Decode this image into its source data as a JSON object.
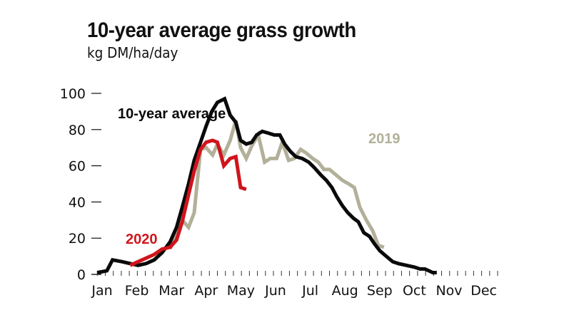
{
  "chart_data": {
    "type": "line",
    "title": "10-year average grass growth",
    "subtitle": "kg DM/ha/day",
    "xlabel": "",
    "ylabel": "kg DM/ha/day",
    "ylim": [
      0,
      100
    ],
    "yticks": [
      0,
      20,
      40,
      60,
      80,
      100
    ],
    "grid": false,
    "x_unit": "week of year",
    "xlim": [
      0,
      51.5
    ],
    "month_labels": [
      "Jan",
      "Feb",
      "Mar",
      "Apr",
      "May",
      "Jun",
      "Jul",
      "Aug",
      "Sep",
      "Oct",
      "Nov",
      "Dec"
    ],
    "colors": {
      "ten_year": "#0a0a0a",
      "y2020": "#d0141c",
      "y2019": "#b3b09a"
    },
    "series": [
      {
        "name": "10-year average",
        "label": "10-year average",
        "color_key": "ten_year",
        "points": [
          [
            -0.6,
            1
          ],
          [
            0.6,
            2
          ],
          [
            1.3,
            8
          ],
          [
            2.5,
            7
          ],
          [
            3.5,
            6
          ],
          [
            4.5,
            5
          ],
          [
            5.5,
            6
          ],
          [
            6.5,
            8
          ],
          [
            7.5,
            12
          ],
          [
            8.5,
            18
          ],
          [
            9.3,
            26
          ],
          [
            10.0,
            37
          ],
          [
            10.8,
            50
          ],
          [
            11.5,
            63
          ],
          [
            12.3,
            73
          ],
          [
            13.0,
            82
          ],
          [
            13.7,
            90
          ],
          [
            14.4,
            95
          ],
          [
            15.3,
            97
          ],
          [
            16.0,
            88
          ],
          [
            16.7,
            84
          ],
          [
            17.3,
            74
          ],
          [
            18.0,
            72
          ],
          [
            18.7,
            73
          ],
          [
            19.3,
            77
          ],
          [
            20.0,
            79
          ],
          [
            20.8,
            78
          ],
          [
            21.5,
            77
          ],
          [
            22.2,
            77
          ],
          [
            22.8,
            72
          ],
          [
            23.5,
            68
          ],
          [
            24.2,
            65
          ],
          [
            25.0,
            64
          ],
          [
            25.8,
            62
          ],
          [
            26.5,
            59
          ],
          [
            27.3,
            55
          ],
          [
            28.0,
            52
          ],
          [
            28.7,
            48
          ],
          [
            29.3,
            43
          ],
          [
            30.0,
            38
          ],
          [
            30.7,
            34
          ],
          [
            31.4,
            31
          ],
          [
            32.0,
            29
          ],
          [
            32.7,
            23
          ],
          [
            33.4,
            21
          ],
          [
            34.0,
            17
          ],
          [
            34.7,
            13
          ],
          [
            35.5,
            10
          ],
          [
            36.3,
            7
          ],
          [
            37.0,
            6
          ],
          [
            38.0,
            5
          ],
          [
            39.0,
            4
          ],
          [
            39.7,
            3
          ],
          [
            40.3,
            3
          ],
          [
            40.8,
            2
          ],
          [
            41.3,
            1
          ],
          [
            41.8,
            1
          ]
        ]
      },
      {
        "name": "2020",
        "label": "2020",
        "color_key": "y2020",
        "points": [
          [
            3.5,
            5
          ],
          [
            4.5,
            7
          ],
          [
            5.5,
            9
          ],
          [
            6.5,
            11
          ],
          [
            7.5,
            14
          ],
          [
            8.5,
            15
          ],
          [
            9.3,
            19
          ],
          [
            10.0,
            29
          ],
          [
            10.8,
            44
          ],
          [
            11.5,
            57
          ],
          [
            12.3,
            69
          ],
          [
            13.0,
            73
          ],
          [
            13.8,
            74
          ],
          [
            14.4,
            73
          ],
          [
            15.2,
            60
          ],
          [
            16.0,
            64
          ],
          [
            16.7,
            65
          ],
          [
            17.3,
            48
          ],
          [
            18.0,
            47
          ]
        ]
      },
      {
        "name": "2019",
        "label": "2019",
        "color_key": "y2019",
        "points": [
          [
            8.5,
            14
          ],
          [
            9.3,
            25
          ],
          [
            10.0,
            30
          ],
          [
            10.8,
            26
          ],
          [
            11.5,
            34
          ],
          [
            12.3,
            69
          ],
          [
            13.0,
            70
          ],
          [
            13.8,
            66
          ],
          [
            14.4,
            72
          ],
          [
            15.2,
            66
          ],
          [
            16.0,
            74
          ],
          [
            16.7,
            85
          ],
          [
            17.3,
            70
          ],
          [
            18.0,
            64
          ],
          [
            18.7,
            71
          ],
          [
            19.5,
            77
          ],
          [
            20.3,
            62
          ],
          [
            21.0,
            64
          ],
          [
            21.8,
            64
          ],
          [
            22.5,
            73
          ],
          [
            23.3,
            63
          ],
          [
            24.0,
            64
          ],
          [
            24.8,
            69
          ],
          [
            25.5,
            67
          ],
          [
            26.3,
            64
          ],
          [
            27.0,
            62
          ],
          [
            27.7,
            58
          ],
          [
            28.4,
            58
          ],
          [
            29.2,
            55
          ],
          [
            30.0,
            52
          ],
          [
            30.8,
            50
          ],
          [
            31.5,
            48
          ],
          [
            32.2,
            37
          ],
          [
            33.0,
            30
          ],
          [
            33.8,
            24
          ],
          [
            34.5,
            16
          ],
          [
            35.2,
            15
          ]
        ]
      }
    ]
  }
}
